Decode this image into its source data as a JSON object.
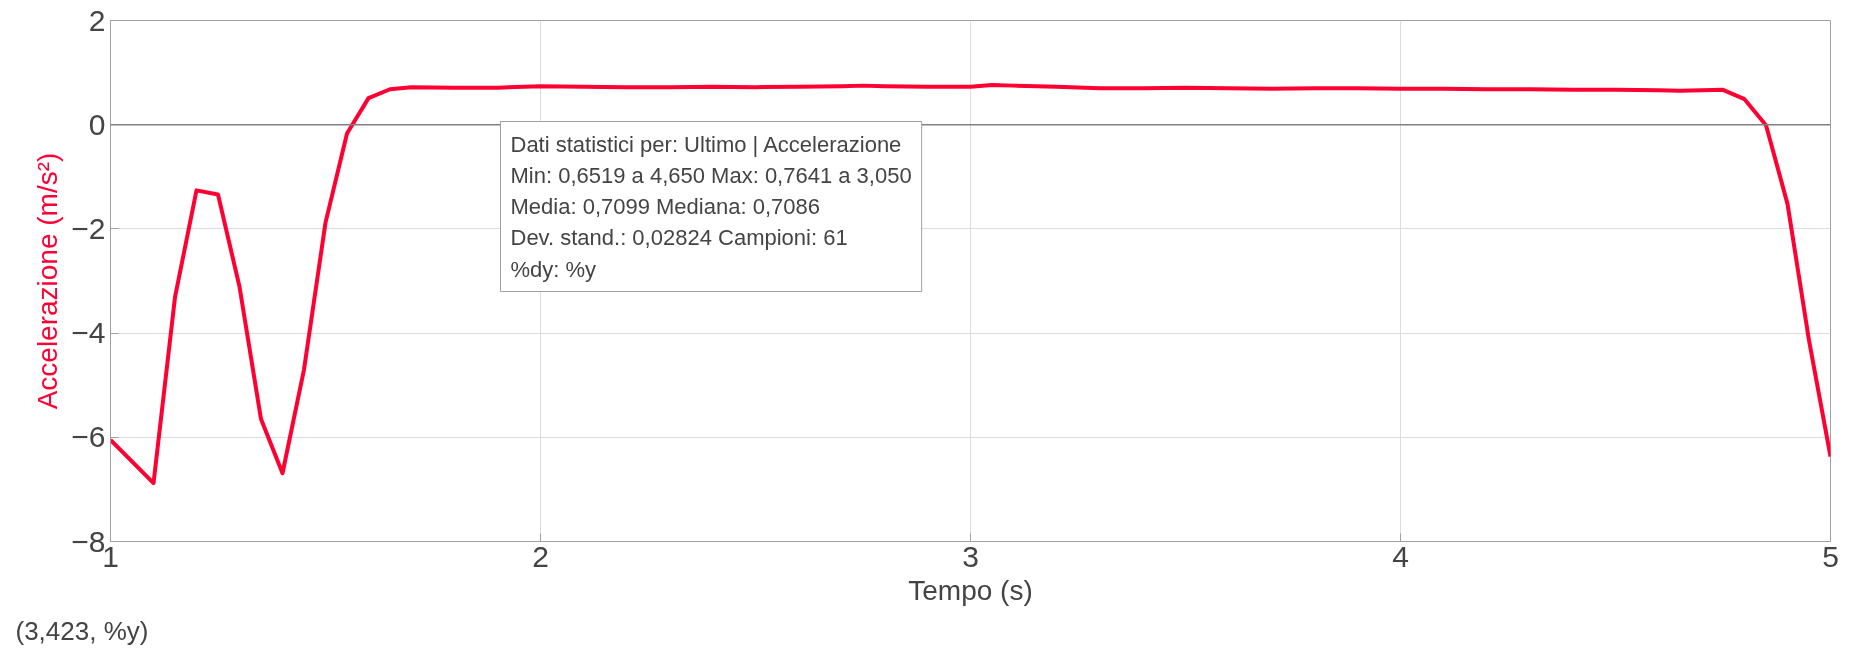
{
  "chart_data": {
    "type": "line",
    "xlabel": "Tempo (s)",
    "ylabel": "Accelerazione (m/s²)",
    "xlim": [
      1,
      5
    ],
    "ylim": [
      -8,
      2
    ],
    "xticks": [
      1,
      2,
      3,
      4,
      5
    ],
    "yticks": [
      -8,
      -6,
      -4,
      -2,
      0,
      2
    ],
    "grid": true,
    "marker": "none",
    "line_style": "solid",
    "series": [
      {
        "color": "#ff0033",
        "x": [
          1.0,
          1.1,
          1.15,
          1.2,
          1.25,
          1.3,
          1.35,
          1.4,
          1.45,
          1.5,
          1.55,
          1.6,
          1.65,
          1.7,
          1.8,
          1.9,
          2.0,
          2.1,
          2.2,
          2.3,
          2.4,
          2.5,
          2.6,
          2.7,
          2.75,
          2.8,
          2.9,
          3.0,
          3.05,
          3.1,
          3.2,
          3.3,
          3.4,
          3.5,
          3.6,
          3.7,
          3.8,
          3.9,
          4.0,
          4.1,
          4.2,
          4.3,
          4.4,
          4.5,
          4.6,
          4.65,
          4.7,
          4.75,
          4.8,
          4.85,
          4.9,
          4.95,
          5.0
        ],
        "values": [
          -6.05,
          -6.88,
          -3.31,
          -1.26,
          -1.34,
          -3.11,
          -5.65,
          -6.69,
          -4.7,
          -1.88,
          -0.17,
          0.51,
          0.68,
          0.72,
          0.71,
          0.71,
          0.74,
          0.73,
          0.72,
          0.72,
          0.73,
          0.72,
          0.73,
          0.74,
          0.75,
          0.74,
          0.73,
          0.73,
          0.76,
          0.75,
          0.73,
          0.7,
          0.7,
          0.71,
          0.7,
          0.69,
          0.7,
          0.7,
          0.69,
          0.69,
          0.68,
          0.68,
          0.67,
          0.67,
          0.66,
          0.65,
          0.66,
          0.67,
          0.49,
          -0.01,
          -1.52,
          -4.14,
          -6.37
        ]
      }
    ],
    "ref_lines": [
      {
        "axis": "y",
        "value": 0,
        "color": "#808080"
      }
    ],
    "annotations": [
      "Dati statistici per: Ultimo | Accelerazione\nMin: 0,6519 a 4,650 Max: 0,7641 a 3,050\nMedia: 0,7099 Mediana: 0,7086\nDev. stand.: 0,02824 Campioni: 61\n%dy: %y",
      "(3,423, %y)"
    ]
  }
}
